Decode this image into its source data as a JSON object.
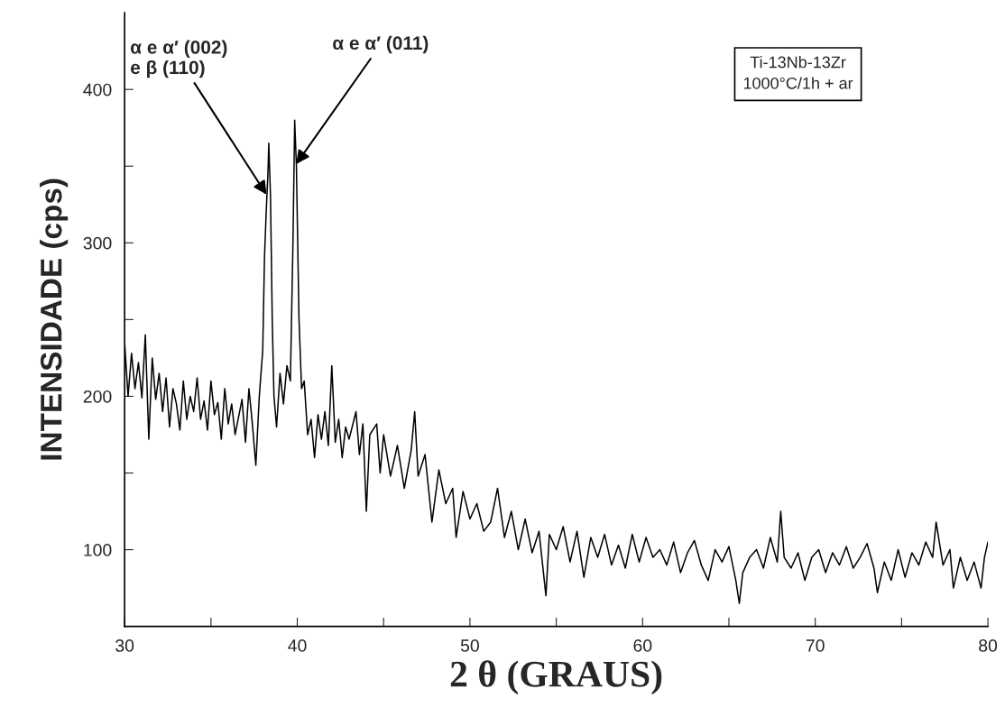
{
  "chart_data": {
    "type": "line",
    "xlabel": "2 θ (GRAUS)",
    "ylabel": "INTENSIDADE (cps)",
    "xlim": [
      30,
      80
    ],
    "ylim": [
      50,
      450
    ],
    "xticks": [
      30,
      {
        "value": 35,
        "label": null
      },
      40,
      {
        "value": 45,
        "label": null
      },
      50,
      {
        "value": 55,
        "label": null
      },
      60,
      {
        "value": 65,
        "label": null
      },
      70,
      {
        "value": 75,
        "label": null
      },
      80
    ],
    "yticks": [
      100,
      {
        "value": 150,
        "label": null
      },
      200,
      {
        "value": 250,
        "label": null
      },
      300,
      {
        "value": 350,
        "label": null
      },
      400
    ],
    "grid": false,
    "legend": false,
    "marker": "none",
    "line_style": "solid",
    "annotations": [
      {
        "text": "α e α′ (002)\ne β (110)",
        "x": 38.3,
        "y": 330
      },
      {
        "text": "α e α′ (011)",
        "x": 39.85,
        "y": 350
      },
      "Ti-13Nb-13Zr\n1000°C/1h + ar"
    ],
    "series": [
      {
        "color": "#000000",
        "x": [
          30.0,
          30.2,
          30.4,
          30.6,
          30.8,
          31.0,
          31.2,
          31.4,
          31.6,
          31.8,
          32.0,
          32.2,
          32.4,
          32.6,
          32.8,
          33.0,
          33.2,
          33.4,
          33.6,
          33.8,
          34.0,
          34.2,
          34.4,
          34.6,
          34.8,
          35.0,
          35.2,
          35.4,
          35.6,
          35.8,
          36.0,
          36.2,
          36.4,
          36.8,
          37.0,
          37.2,
          37.4,
          37.6,
          37.8,
          38.0,
          38.1,
          38.2,
          38.3,
          38.35,
          38.45,
          38.55,
          38.65,
          38.8,
          39.0,
          39.2,
          39.4,
          39.6,
          39.75,
          39.85,
          39.95,
          40.1,
          40.25,
          40.4,
          40.6,
          40.8,
          41.0,
          41.2,
          41.4,
          41.6,
          41.8,
          42.0,
          42.2,
          42.4,
          42.6,
          42.8,
          43.0,
          43.4,
          43.6,
          43.8,
          44.0,
          44.2,
          44.6,
          44.8,
          45.0,
          45.4,
          45.8,
          46.2,
          46.6,
          46.8,
          47.0,
          47.4,
          47.8,
          48.2,
          48.6,
          49.0,
          49.2,
          49.6,
          50.0,
          50.4,
          50.8,
          51.2,
          51.6,
          52.0,
          52.4,
          52.8,
          53.2,
          53.6,
          54.0,
          54.4,
          54.6,
          55.0,
          55.4,
          55.8,
          56.2,
          56.6,
          57.0,
          57.4,
          57.8,
          58.2,
          58.6,
          59.0,
          59.4,
          59.8,
          60.2,
          60.6,
          61.0,
          61.4,
          61.8,
          62.2,
          62.6,
          63.0,
          63.4,
          63.8,
          64.2,
          64.6,
          65.0,
          65.4,
          65.6,
          65.8,
          66.2,
          66.6,
          67.0,
          67.4,
          67.8,
          68.0,
          68.2,
          68.6,
          69.0,
          69.4,
          69.8,
          70.2,
          70.6,
          71.0,
          71.4,
          71.8,
          72.2,
          72.6,
          73.0,
          73.4,
          73.6,
          74.0,
          74.4,
          74.8,
          75.2,
          75.6,
          76.0,
          76.4,
          76.8,
          77.0,
          77.4,
          77.8,
          78.0,
          78.4,
          78.8,
          79.2,
          79.6,
          79.8,
          80.0
        ],
        "values": [
          235,
          200,
          228,
          205,
          222,
          199,
          240,
          172,
          225,
          198,
          215,
          190,
          212,
          180,
          205,
          195,
          178,
          210,
          185,
          200,
          190,
          212,
          185,
          197,
          178,
          210,
          188,
          196,
          172,
          205,
          182,
          195,
          175,
          198,
          170,
          205,
          182,
          155,
          200,
          230,
          290,
          320,
          345,
          365,
          330,
          250,
          200,
          180,
          215,
          195,
          220,
          210,
          300,
          380,
          350,
          250,
          205,
          210,
          175,
          185,
          160,
          188,
          172,
          190,
          168,
          220,
          170,
          185,
          160,
          180,
          172,
          190,
          162,
          182,
          125,
          175,
          182,
          150,
          175,
          148,
          168,
          140,
          165,
          190,
          148,
          162,
          118,
          152,
          130,
          140,
          108,
          138,
          120,
          130,
          112,
          118,
          140,
          108,
          125,
          100,
          120,
          98,
          112,
          70,
          110,
          100,
          115,
          92,
          112,
          82,
          108,
          95,
          110,
          90,
          103,
          88,
          110,
          92,
          108,
          95,
          100,
          90,
          105,
          85,
          98,
          106,
          90,
          80,
          100,
          92,
          102,
          80,
          65,
          85,
          95,
          100,
          88,
          108,
          92,
          125,
          95,
          88,
          98,
          80,
          95,
          100,
          85,
          98,
          90,
          102,
          88,
          95,
          104,
          88,
          72,
          92,
          80,
          100,
          82,
          98,
          90,
          105,
          95,
          118,
          90,
          100,
          75,
          95,
          80,
          92,
          75,
          95,
          105
        ]
      }
    ]
  }
}
